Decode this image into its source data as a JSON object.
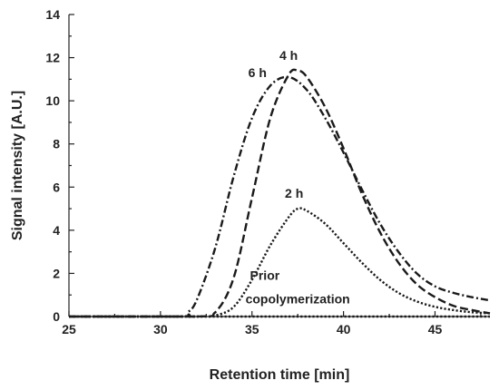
{
  "chart_data": {
    "type": "line",
    "title": "",
    "xlabel": "Retention time [min]",
    "ylabel": "Signal intensity [A.U.]",
    "xlim": [
      25,
      48
    ],
    "ylim": [
      0,
      14
    ],
    "xticks": [
      25,
      30,
      35,
      40,
      45
    ],
    "yticks": [
      0,
      2,
      4,
      6,
      8,
      10,
      12,
      14
    ],
    "grid": false,
    "legend": "none",
    "series": [
      {
        "name": "Prior copolymerization",
        "style": "dotted",
        "x": [
          25,
          30,
          35,
          40,
          45,
          48
        ],
        "y": [
          0,
          0,
          0,
          0,
          0,
          0
        ]
      },
      {
        "name": "2 h",
        "style": "dotted",
        "x": [
          25,
          32,
          33,
          34,
          35,
          36,
          37,
          37.5,
          38,
          39,
          40,
          41,
          42,
          43,
          44,
          45,
          46,
          47,
          48
        ],
        "y": [
          0,
          0,
          0.05,
          0.45,
          1.7,
          3.3,
          4.6,
          5.0,
          4.9,
          4.3,
          3.4,
          2.5,
          1.7,
          1.1,
          0.7,
          0.45,
          0.3,
          0.2,
          0.15
        ]
      },
      {
        "name": "4 h",
        "style": "dashed",
        "x": [
          25,
          32,
          33,
          34,
          35,
          36,
          37,
          37.5,
          38,
          39,
          40,
          41,
          42,
          43,
          44,
          45,
          46,
          47,
          48
        ],
        "y": [
          0,
          0,
          0.2,
          1.8,
          5.5,
          9.2,
          11.2,
          11.4,
          11.1,
          9.7,
          7.8,
          5.7,
          3.9,
          2.5,
          1.5,
          0.9,
          0.5,
          0.3,
          0.15
        ]
      },
      {
        "name": "6 h",
        "style": "dashdot",
        "x": [
          25,
          31,
          31.5,
          32,
          33,
          34,
          35,
          36,
          37,
          38,
          39,
          40,
          41,
          42,
          43,
          44,
          45,
          46,
          47,
          48
        ],
        "y": [
          0,
          0,
          0.2,
          0.8,
          3.2,
          6.5,
          9.2,
          10.7,
          11.1,
          10.5,
          9.2,
          7.6,
          5.9,
          4.3,
          3.0,
          2.0,
          1.4,
          1.1,
          0.9,
          0.75
        ]
      }
    ],
    "annotations": [
      {
        "text": "6 h",
        "x": 35.3,
        "y": 11.1
      },
      {
        "text": "4 h",
        "x": 37.0,
        "y": 11.9
      },
      {
        "text": "2 h",
        "x": 37.3,
        "y": 5.5
      },
      {
        "text": "Prior",
        "x": 35.7,
        "y": 1.7
      },
      {
        "text": "copolymerization",
        "x": 37.5,
        "y": 0.6
      }
    ]
  }
}
